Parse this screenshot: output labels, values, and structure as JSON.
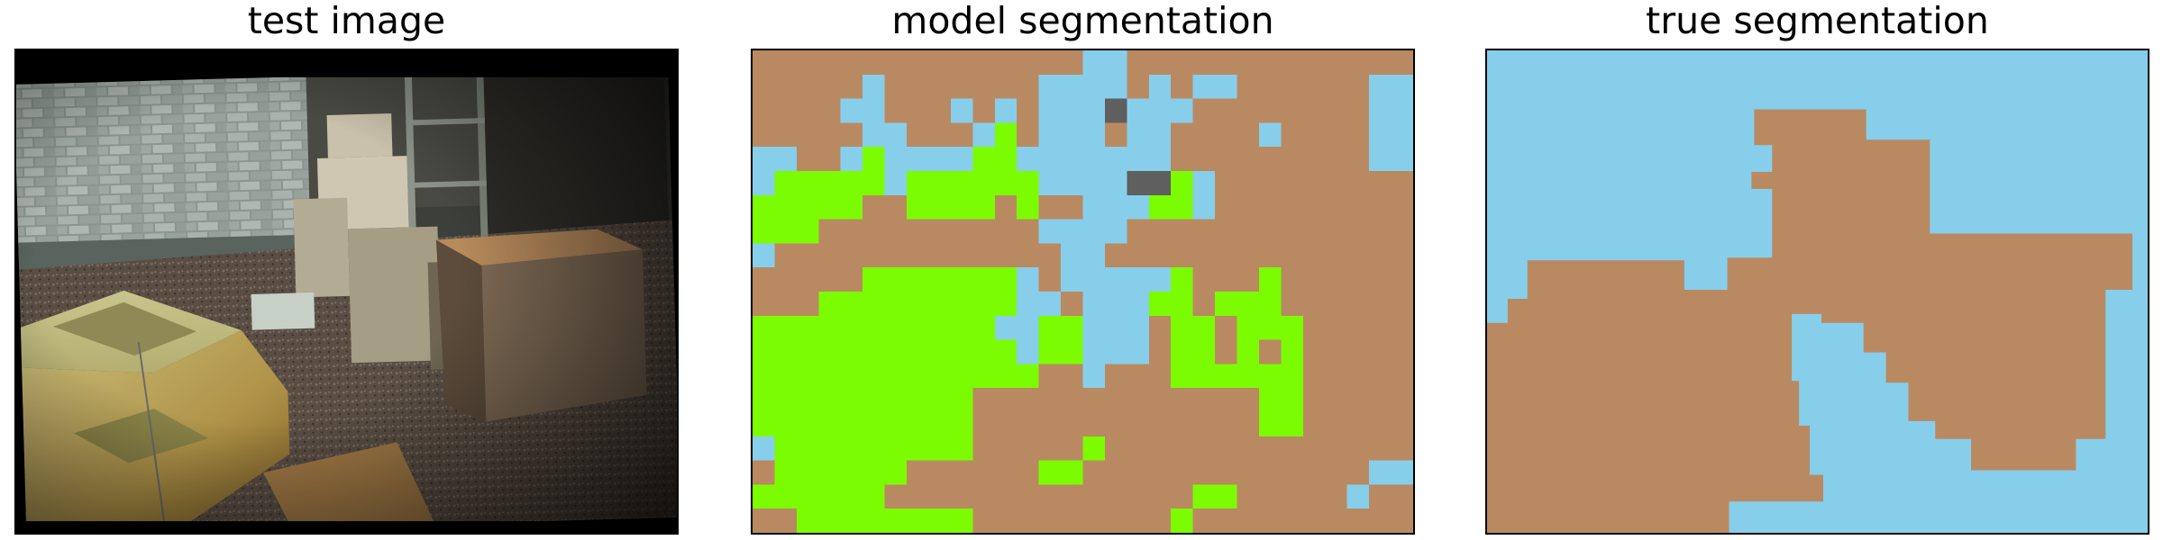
{
  "panels": [
    {
      "id": "test",
      "title": "test image"
    },
    {
      "id": "model",
      "title": "model segmentation"
    },
    {
      "id": "true",
      "title": "true segmentation"
    }
  ],
  "colors": {
    "background_class": "#87ceeb",
    "object_class": "#b98a62",
    "green_class": "#7cfc00",
    "gray_class": "#5f5f5f"
  },
  "icons": {
    "test_panel_content": "warehouse-boxes-ramp-photo"
  },
  "model_grid": [
    "BBBBBBBBBBBBBBBSSBBBBBBBBBBBBB",
    "BBBBBSBBBBBBBSSSSBSBSSBBBBBBSS",
    "BBBBSSBBBSBSBSSSGSSSBBBBBBBBSS",
    "BBBBBSSBBBSGBSSSBSSBBBBSBBBBSS",
    "SSBBSGSSSSGGSSSSSSSBBBBBBBBBSS",
    "SGGGGGSGGGGGGSSSSSGGSBBBBBBBBB",
    "GGGGGBBGGGGBGBBSSSGGSBBBBBBBBB",
    "GGGBBBBBBBBBBSSSSBBBBBBBBBBBBB",
    "SBBBBBBBBBBBBBSSBBBBBBBBBBBBBB",
    "BBBBBGGGGGGGSBSSSSSGBBBGBBBBBB",
    "BBBGGGGGGGGGSSBSSSGGBGGGBBBBBB",
    "GGGGGGGGGGGSSGGSSSBGGBGGGBBBBB",
    "GGGGGGGGGGGGSGGSSSBGGBGBGBBBBB",
    "GGGGGGGGGGGGGBBSBBBGGGGGGBBBBB",
    "GGGGGGGGGGBBBBBBBBBBBBBGGBBBBB",
    "GGGGGGGGGGBBBBBBBBBBBBBGGBBBBB",
    "SGGGGGGGGGBBBBBGBBBBBBBBBBBBBB",
    "BGGGGGGBBBBBBGGBBBBBBBBBBBBBSS",
    "GGGGGGBBBBBBBBBBBBBBGGBBBBBSBB",
    "BBGGGGGGGGBBBBBBBBBGBBBBBBBBBB"
  ]
}
